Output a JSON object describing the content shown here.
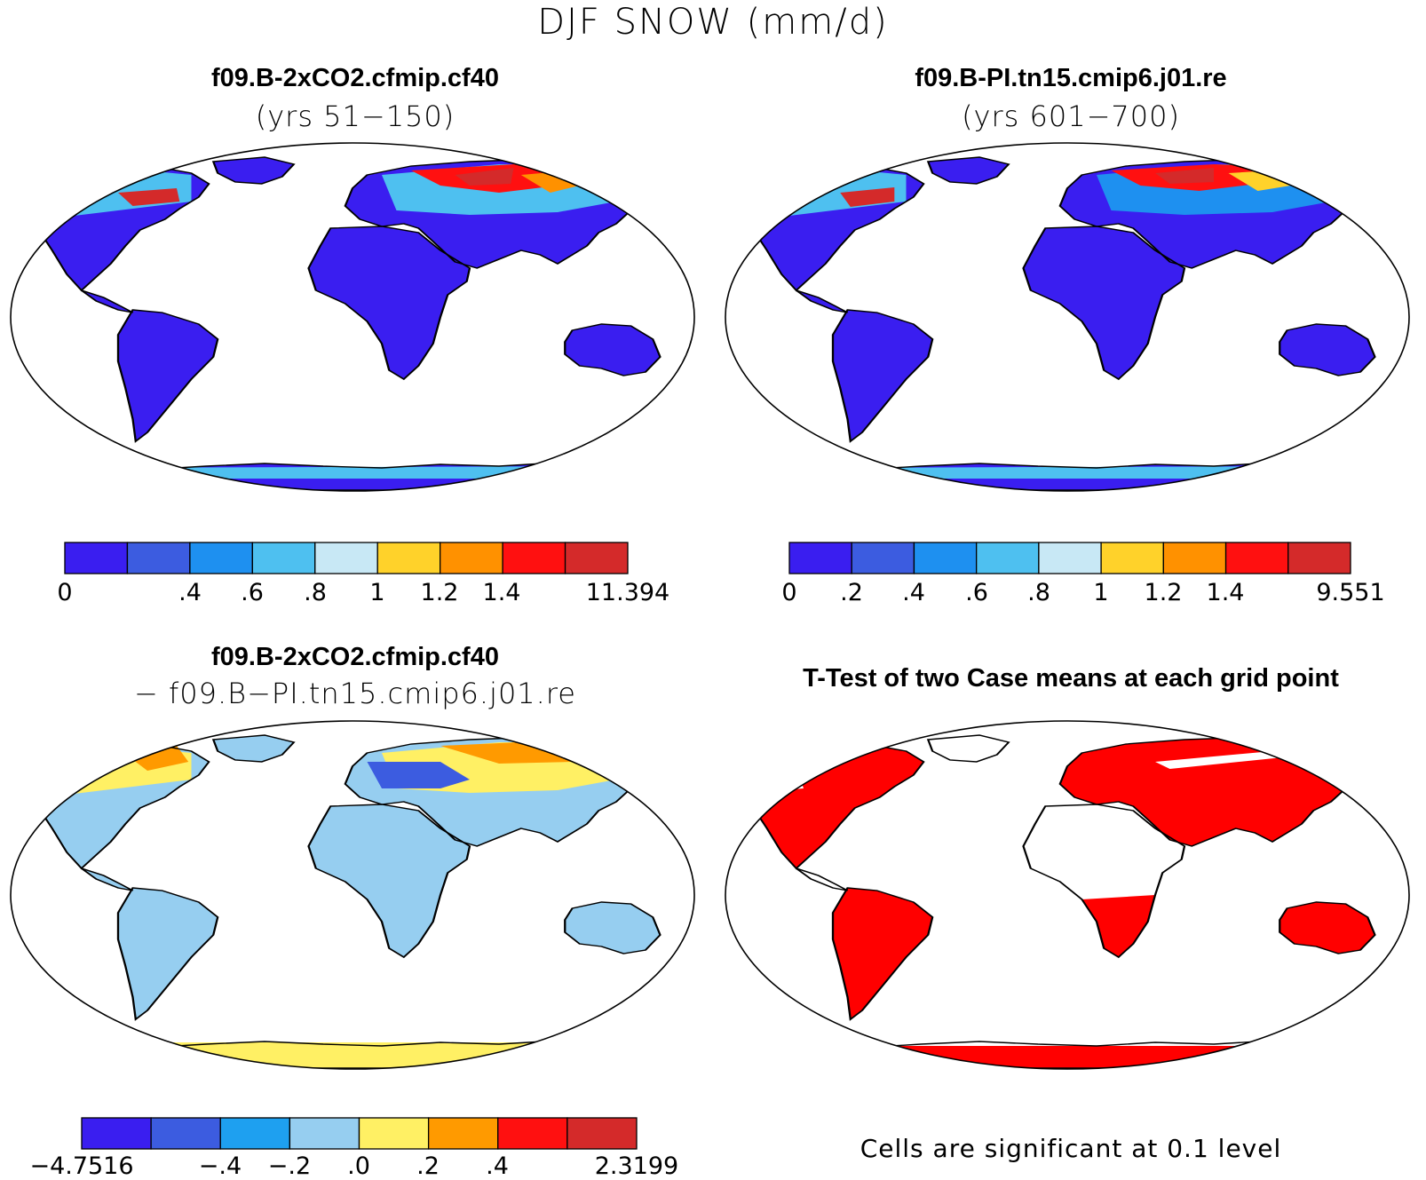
{
  "title": "DJF SNOW (mm/d)",
  "colors": {
    "levels9": [
      "#3a1ef0",
      "#3c5ce0",
      "#1e90f0",
      "#4ec0f0",
      "#c8e8f5",
      "#ffd22a",
      "#ff9100",
      "#ff1010",
      "#d42a2a"
    ],
    "diff8": [
      "#3a1ef0",
      "#3c5ce0",
      "#1ea0f0",
      "#96cef0",
      "#fff064",
      "#ff9a00",
      "#ff1010",
      "#d42a2a"
    ],
    "significant": "#ff0000",
    "land_low": "#3a1ef0",
    "diff_base": "#96cef0"
  },
  "panels": {
    "top_left": {
      "title": "f09.B-2xCO2.cfmip.cf40",
      "subtitle": "(yrs 51−150)",
      "colorbar_labels": [
        "0",
        ".4",
        ".6",
        ".8",
        "1",
        "1.2",
        "1.4",
        "11.394"
      ]
    },
    "top_right": {
      "title": "f09.B-PI.tn15.cmip6.j01.re",
      "subtitle": "(yrs 601−700)",
      "colorbar_labels": [
        "0",
        ".2",
        ".4",
        ".6",
        ".8",
        "1",
        "1.2",
        "1.4",
        "9.551"
      ]
    },
    "bottom_left": {
      "title": "f09.B-2xCO2.cfmip.cf40",
      "subtitle": "− f09.B−PI.tn15.cmip6.j01.re",
      "colorbar_labels": [
        "−4.7516",
        "−.4",
        "−.2",
        ".0",
        ".2",
        ".4",
        "2.3199"
      ]
    },
    "bottom_right": {
      "title": "T-Test of two Case means at each grid point",
      "note": "Cells are significant at 0.1 level"
    }
  }
}
